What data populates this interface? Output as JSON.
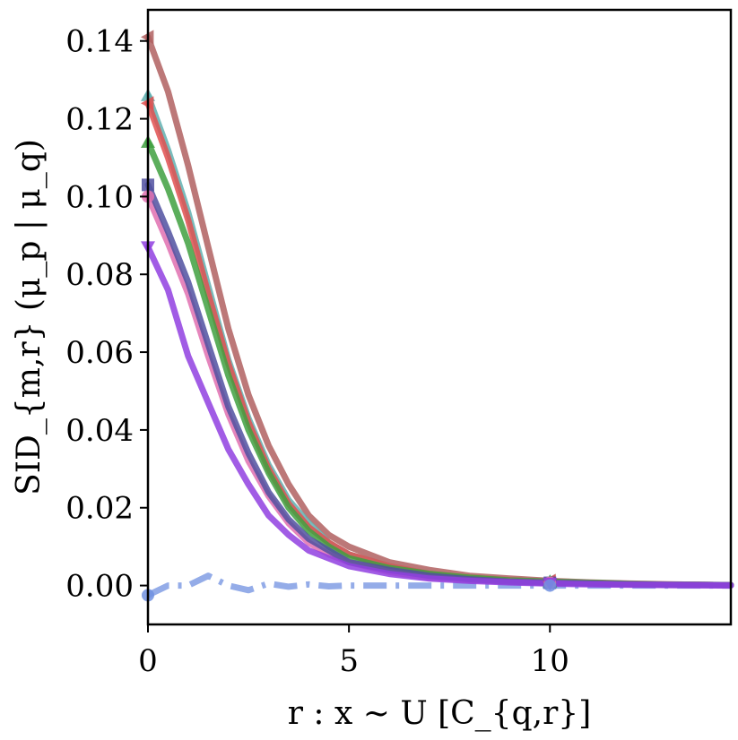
{
  "chart_data": {
    "type": "line",
    "title": "",
    "xlabel": "r : x ~ U [C_{q,r}]",
    "ylabel": "SID_{m,r} (μ_p | μ_q)",
    "xlim": [
      0,
      14.5
    ],
    "ylim": [
      -0.01,
      0.148
    ],
    "x_ticks": [
      0,
      5,
      10
    ],
    "y_ticks": [
      0.0,
      0.02,
      0.04,
      0.06,
      0.08,
      0.1,
      0.12,
      0.14
    ],
    "x_tick_labels": [
      "0",
      "5",
      "10"
    ],
    "y_tick_labels": [
      "0.00",
      "0.02",
      "0.04",
      "0.06",
      "0.08",
      "0.10",
      "0.12",
      "0.14"
    ],
    "grid": false,
    "legend": "none",
    "x": [
      0,
      0.5,
      1,
      1.5,
      2,
      2.5,
      3,
      3.5,
      4,
      4.5,
      5,
      6,
      7,
      8,
      9,
      10,
      11,
      12,
      13,
      14.5
    ],
    "series": [
      {
        "color": "#b06060",
        "style": "solid",
        "marker": "triangle-left",
        "values": [
          0.141,
          0.127,
          0.108,
          0.087,
          0.066,
          0.049,
          0.036,
          0.026,
          0.018,
          0.013,
          0.01,
          0.006,
          0.004,
          0.0025,
          0.0018,
          0.0012,
          0.0008,
          0.0005,
          0.0003,
          0.0001
        ]
      },
      {
        "color": "#60b0b0",
        "style": "solid",
        "marker": "triangle-up",
        "values": [
          0.126,
          0.112,
          0.096,
          0.077,
          0.058,
          0.043,
          0.031,
          0.022,
          0.016,
          0.011,
          0.008,
          0.005,
          0.003,
          0.002,
          0.0014,
          0.001,
          0.0007,
          0.0004,
          0.0002,
          0.0001
        ]
      },
      {
        "color": "#e05050",
        "style": "solid",
        "marker": "triangle-left",
        "values": [
          0.124,
          0.11,
          0.094,
          0.075,
          0.057,
          0.042,
          0.03,
          0.021,
          0.015,
          0.011,
          0.008,
          0.005,
          0.003,
          0.002,
          0.0014,
          0.001,
          0.0007,
          0.0004,
          0.0002,
          0.0001
        ]
      },
      {
        "color": "#40a040",
        "style": "solid",
        "marker": "triangle-up",
        "values": [
          0.114,
          0.102,
          0.088,
          0.071,
          0.054,
          0.04,
          0.029,
          0.02,
          0.014,
          0.01,
          0.007,
          0.0045,
          0.003,
          0.002,
          0.0013,
          0.001,
          0.0007,
          0.0004,
          0.0002,
          0.0001
        ]
      },
      {
        "color": "#5050a0",
        "style": "solid",
        "marker": "square",
        "values": [
          0.103,
          0.091,
          0.078,
          0.062,
          0.046,
          0.034,
          0.024,
          0.017,
          0.012,
          0.009,
          0.006,
          0.004,
          0.0025,
          0.0016,
          0.001,
          0.0007,
          0.0005,
          0.0003,
          0.0002,
          0.0001
        ]
      },
      {
        "color": "#e070b0",
        "style": "solid",
        "marker": "circle",
        "values": [
          0.1,
          0.088,
          0.075,
          0.059,
          0.044,
          0.032,
          0.023,
          0.016,
          0.011,
          0.008,
          0.006,
          0.0035,
          0.002,
          0.0014,
          0.001,
          0.0007,
          0.0005,
          0.0003,
          0.0002,
          0.0001
        ]
      },
      {
        "color": "#9040e0",
        "style": "solid",
        "marker": "triangle-down",
        "values": [
          0.087,
          0.076,
          0.059,
          0.047,
          0.035,
          0.026,
          0.018,
          0.013,
          0.009,
          0.007,
          0.005,
          0.003,
          0.0018,
          0.0012,
          0.0008,
          0.0005,
          0.0003,
          0.0002,
          0.0001,
          0.0
        ]
      },
      {
        "color": "#7090e0",
        "style": "dashdot",
        "marker": "circle",
        "values": [
          -0.0025,
          0.0,
          0.0,
          0.0025,
          0.0,
          -0.0012,
          0.0005,
          -0.0003,
          0.0003,
          -0.0002,
          0.0,
          0.0,
          0.0,
          0.0,
          0.0,
          0.0,
          0.0,
          0.0,
          0.0,
          0.0
        ]
      }
    ]
  }
}
